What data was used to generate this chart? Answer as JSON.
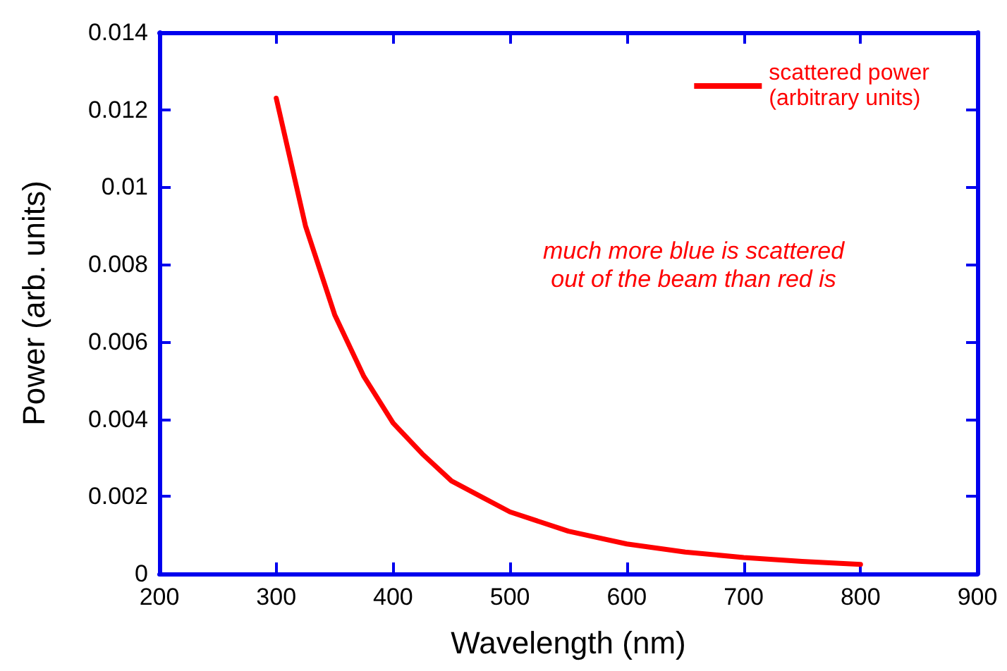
{
  "chart_data": {
    "type": "line",
    "xlabel": "Wavelength (nm)",
    "ylabel": "Power (arb. units)",
    "annotations": [
      "much more blue is scattered\nout of the beam than red is"
    ],
    "x": [
      300,
      325,
      350,
      375,
      400,
      425,
      450,
      475,
      500,
      550,
      600,
      650,
      700,
      750,
      800
    ],
    "series": [
      {
        "name": "scattered power\n(arbitrary units)",
        "color": "#ff0000",
        "values": [
          0.0123,
          0.009,
          0.0067,
          0.0051,
          0.0039,
          0.0031,
          0.0024,
          0.002,
          0.0016,
          0.0011,
          0.00077,
          0.00056,
          0.00042,
          0.00032,
          0.00024
        ]
      }
    ],
    "xlim": [
      200,
      900
    ],
    "xticks": [
      200,
      300,
      400,
      500,
      600,
      700,
      800,
      900
    ],
    "ylim": [
      0,
      0.014
    ],
    "yticks": [
      0,
      0.002,
      0.004,
      0.006,
      0.008,
      0.01,
      0.012,
      0.014
    ],
    "grid": false,
    "legend": "top right",
    "marker": "none",
    "line_style": "solid"
  }
}
